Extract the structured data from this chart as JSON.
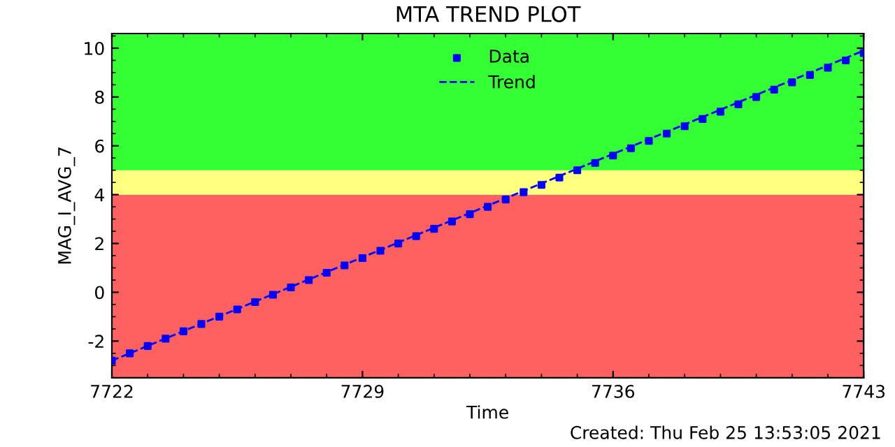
{
  "chart_data": {
    "type": "scatter",
    "title": "MTA TREND PLOT",
    "xlabel": "Time",
    "ylabel": "MAG_I_AVG_7",
    "xlim": [
      7722,
      7743
    ],
    "xticks": [
      7722,
      7729,
      7736,
      7743
    ],
    "ylim": [
      -3.5,
      10.6
    ],
    "yticks": [
      -2,
      0,
      2,
      4,
      6,
      8,
      10
    ],
    "grid": false,
    "legend": "top",
    "bands": [
      {
        "axis": "y",
        "from": -3.5,
        "to": 4,
        "label": null,
        "color": "#ff6060"
      },
      {
        "axis": "y",
        "from": 4,
        "to": 5,
        "label": null,
        "color": "#ffff80"
      },
      {
        "axis": "y",
        "from": 5,
        "to": 10.6,
        "label": null,
        "color": "#33ff33"
      }
    ],
    "annotations": [
      "Created: Thu Feb 25 13:53:05 2021"
    ],
    "series": [
      {
        "name": "Data",
        "color": "#0000ff",
        "marker": "square",
        "x": [
          7722,
          7722.5,
          7723,
          7723.5,
          7724,
          7724.5,
          7725,
          7725.5,
          7726,
          7726.5,
          7727,
          7727.5,
          7728,
          7728.5,
          7729,
          7729.5,
          7730,
          7730.5,
          7731,
          7731.5,
          7732,
          7732.5,
          7733,
          7733.5,
          7734,
          7734.5,
          7735,
          7735.5,
          7736,
          7736.5,
          7737,
          7737.5,
          7738,
          7738.5,
          7739,
          7739.5,
          7740,
          7740.5,
          7741,
          7741.5,
          7742,
          7742.5,
          7743
        ],
        "values": [
          -2.8,
          -2.5,
          -2.2,
          -1.9,
          -1.6,
          -1.3,
          -1.0,
          -0.7,
          -0.4,
          -0.1,
          0.2,
          0.5,
          0.8,
          1.1,
          1.4,
          1.7,
          2.0,
          2.3,
          2.6,
          2.9,
          3.2,
          3.5,
          3.8,
          4.1,
          4.4,
          4.7,
          5.0,
          5.3,
          5.6,
          5.9,
          6.2,
          6.5,
          6.8,
          7.1,
          7.4,
          7.7,
          8.0,
          8.3,
          8.6,
          8.9,
          9.2,
          9.5,
          9.8
        ]
      },
      {
        "name": "Trend",
        "color": "#0000ff",
        "type": "line",
        "line_style": "dashed",
        "x": [
          7722,
          7743
        ],
        "values": [
          -2.8,
          9.9
        ]
      }
    ]
  }
}
